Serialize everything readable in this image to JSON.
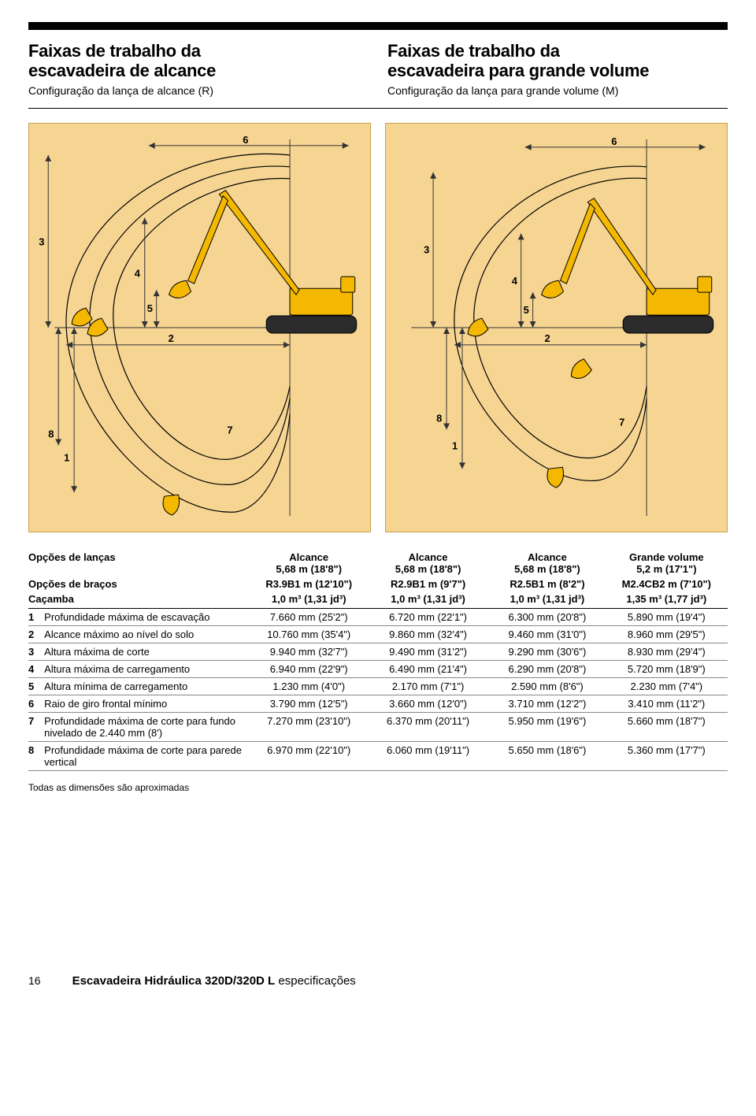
{
  "colors": {
    "diagram_bg": "#f6d593",
    "diagram_border": "#c9a24e",
    "excavator_yellow": "#f4b800",
    "track_grey": "#2b2b2b",
    "line": "#000000",
    "page_bg": "#ffffff"
  },
  "left_header": {
    "title_line1": "Faixas de trabalho da",
    "title_line2": "escavadeira de alcance",
    "subtitle": "Configuração da lança de alcance (R)"
  },
  "right_header": {
    "title_line1": "Faixas de trabalho da",
    "title_line2": "escavadeira para grande volume",
    "subtitle": "Configuração da lança para grande volume (M)"
  },
  "diagram_labels": [
    "1",
    "2",
    "3",
    "4",
    "5",
    "6",
    "7",
    "8"
  ],
  "options_header": {
    "row_lancas_label": "Opções de lanças",
    "lancas": [
      {
        "line1": "Alcance",
        "line2": "5,68 m (18'8\")"
      },
      {
        "line1": "Alcance",
        "line2": "5,68 m (18'8\")"
      },
      {
        "line1": "Alcance",
        "line2": "5,68 m (18'8\")"
      },
      {
        "line1": "Grande volume",
        "line2": "5,2 m (17'1\")"
      }
    ],
    "row_bracos_label": "Opções de braços",
    "bracos": [
      "R3.9B1 m (12'10\")",
      "R2.9B1 m (9'7\")",
      "R2.5B1 m (8'2\")",
      "M2.4CB2 m (7'10\")"
    ],
    "row_cacamba_label": "Caçamba",
    "cacamba": [
      "1,0 m³ (1,31 jd³)",
      "1,0 m³ (1,31 jd³)",
      "1,0 m³ (1,31 jd³)",
      "1,35 m³ (1,77 jd³)"
    ]
  },
  "data_rows": [
    {
      "n": "1",
      "label": "Profundidade máxima de escavação",
      "v": [
        "7.660 mm (25'2\")",
        "6.720 mm (22'1\")",
        "6.300 mm (20'8\")",
        "5.890 mm (19'4\")"
      ]
    },
    {
      "n": "2",
      "label": "Alcance máximo ao nível do solo",
      "v": [
        "10.760 mm (35'4\")",
        "9.860 mm (32'4\")",
        "9.460 mm (31'0\")",
        "8.960 mm (29'5\")"
      ]
    },
    {
      "n": "3",
      "label": "Altura máxima de corte",
      "v": [
        "9.940 mm (32'7\")",
        "9.490 mm (31'2\")",
        "9.290 mm (30'6\")",
        "8.930 mm (29'4\")"
      ]
    },
    {
      "n": "4",
      "label": "Altura máxima de carregamento",
      "v": [
        "6.940 mm (22'9\")",
        "6.490 mm (21'4\")",
        "6.290 mm (20'8\")",
        "5.720 mm (18'9\")"
      ]
    },
    {
      "n": "5",
      "label": "Altura mínima de carregamento",
      "v": [
        "1.230 mm (4'0\")",
        "2.170 mm (7'1\")",
        "2.590 mm (8'6\")",
        "2.230 mm (7'4\")"
      ]
    },
    {
      "n": "6",
      "label": "Raio de giro frontal mínimo",
      "v": [
        "3.790 mm (12'5\")",
        "3.660 mm (12'0\")",
        "3.710 mm (12'2\")",
        "3.410 mm (11'2\")"
      ]
    },
    {
      "n": "7",
      "label": "Profundidade máxima de corte para fundo nivelado de 2.440 mm (8')",
      "v": [
        "7.270 mm (23'10\")",
        "6.370 mm (20'11\")",
        "5.950 mm (19'6\")",
        "5.660 mm (18'7\")"
      ]
    },
    {
      "n": "8",
      "label": "Profundidade máxima de corte para parede vertical",
      "v": [
        "6.970 mm (22'10\")",
        "6.060 mm (19'11\")",
        "5.650 mm (18'6\")",
        "5.360 mm (17'7\")"
      ]
    }
  ],
  "footnote": "Todas as dimensões são aproximadas",
  "footer": {
    "page_number": "16",
    "title_bold": "Escavadeira Hidráulica 320D/320D L",
    "title_rest": " especificações"
  }
}
